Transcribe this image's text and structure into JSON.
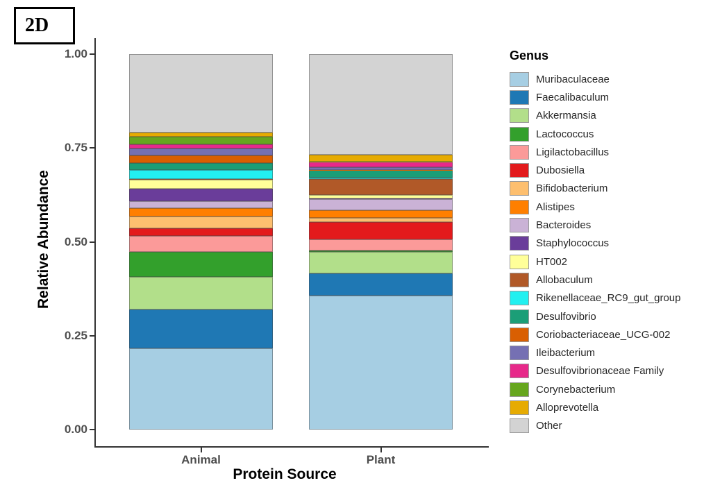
{
  "figure_label": "2D",
  "chart_data": {
    "type": "bar",
    "subtype": "stacked",
    "title": "",
    "xlabel": "Protein Source",
    "ylabel": "Relative Abundance",
    "categories": [
      "Animal",
      "Plant"
    ],
    "ylim": [
      0,
      1
    ],
    "grid": false,
    "legend_title": "Genus",
    "legend_position": "right",
    "y_ticks": [
      {
        "value": 0.0,
        "label": "0.00"
      },
      {
        "value": 0.25,
        "label": "0.25"
      },
      {
        "value": 0.5,
        "label": "0.50"
      },
      {
        "value": 0.75,
        "label": "0.75"
      },
      {
        "value": 1.0,
        "label": "1.00"
      }
    ],
    "series": [
      {
        "name": "Muribaculaceae",
        "color": "#A6CEE3",
        "values": [
          0.216,
          0.356
        ]
      },
      {
        "name": "Faecalibaculum",
        "color": "#1F78B4",
        "values": [
          0.104,
          0.06
        ]
      },
      {
        "name": "Akkermansia",
        "color": "#B2DF8A",
        "values": [
          0.086,
          0.057
        ]
      },
      {
        "name": "Lactococcus",
        "color": "#33A02C",
        "values": [
          0.068,
          0.004
        ]
      },
      {
        "name": "Ligilactobacillus",
        "color": "#FB9A99",
        "values": [
          0.042,
          0.03
        ]
      },
      {
        "name": "Dubosiella",
        "color": "#E31A1C",
        "values": [
          0.02,
          0.046
        ]
      },
      {
        "name": "Bifidobacterium",
        "color": "#FDBF6F",
        "values": [
          0.031,
          0.01
        ]
      },
      {
        "name": "Alistipes",
        "color": "#FF7F00",
        "values": [
          0.023,
          0.021
        ]
      },
      {
        "name": "Bacteroides",
        "color": "#CAB2D6",
        "values": [
          0.018,
          0.03
        ]
      },
      {
        "name": "Staphylococcus",
        "color": "#6A3D9A",
        "values": [
          0.034,
          0.002
        ]
      },
      {
        "name": "HT002",
        "color": "#FFFF99",
        "values": [
          0.023,
          0.009
        ]
      },
      {
        "name": "Allobaculum",
        "color": "#B15928",
        "values": [
          0.003,
          0.043
        ]
      },
      {
        "name": "Rikenellaceae_RC9_gut_group",
        "color": "#22F0F0",
        "values": [
          0.023,
          0.003
        ]
      },
      {
        "name": "Desulfovibrio",
        "color": "#1B9E77",
        "values": [
          0.018,
          0.02
        ]
      },
      {
        "name": "Coriobacteriaceae_UCG-002",
        "color": "#D95F02",
        "values": [
          0.022,
          0.001
        ]
      },
      {
        "name": "Ileibacterium",
        "color": "#7570B3",
        "values": [
          0.018,
          0.007
        ]
      },
      {
        "name": "Desulfovibrionaceae Family",
        "color": "#E7298A",
        "values": [
          0.011,
          0.014
        ]
      },
      {
        "name": "Corynebacterium",
        "color": "#66A61E",
        "values": [
          0.02,
          0.001
        ]
      },
      {
        "name": "Alloprevotella",
        "color": "#E6AB02",
        "values": [
          0.011,
          0.018
        ]
      },
      {
        "name": "Other",
        "color": "#D3D3D3",
        "values": [
          0.209,
          0.268
        ]
      }
    ]
  }
}
